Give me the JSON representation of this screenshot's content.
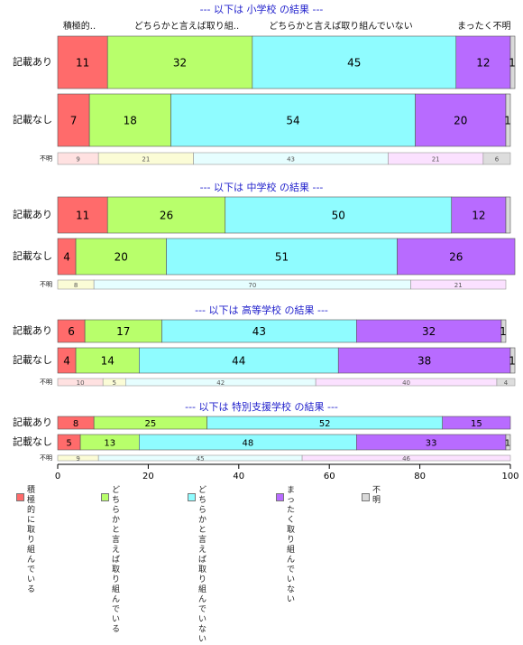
{
  "chart_data": {
    "type": "bar",
    "orientation": "horizontal",
    "stacked": true,
    "xlim": [
      0,
      100
    ],
    "x_ticks": [
      "0",
      "20",
      "40",
      "60",
      "80",
      "100"
    ],
    "series": [
      {
        "name": "積極的に\n取り組んでいる",
        "color": "#ff6b6b"
      },
      {
        "name": "どちらかと言えば\n取り組んでいる",
        "color": "#b8ff6b"
      },
      {
        "name": "どちらかと言えば\n取り組んでいない",
        "color": "#8ffcff"
      },
      {
        "name": "まったく\n取り組んでいない",
        "color": "#b86bff"
      },
      {
        "name": "不明",
        "color": "#d9d9d9"
      }
    ],
    "top_headers": [
      "積極的..",
      "どちらかと言えば取り組..",
      "どちらかと言えば取り組んでいない",
      "まったく不明"
    ],
    "panels": [
      {
        "title": "--- 以下は 小学校 の結果 ---",
        "rows": [
          {
            "label": "記載あり",
            "values": [
              11,
              32,
              45,
              12,
              1
            ],
            "labels": [
              "11",
              "32",
              "45",
              "12",
              "1"
            ]
          },
          {
            "label": "記載なし",
            "values": [
              7,
              18,
              54,
              20,
              1
            ],
            "labels": [
              "7",
              "18",
              "54",
              "20",
              "1"
            ]
          },
          {
            "label": "不明",
            "values": [
              9,
              21,
              43,
              21,
              6
            ],
            "labels": [
              "9",
              "21",
              "43",
              "21",
              "6"
            ],
            "small": true
          }
        ]
      },
      {
        "title": "--- 以下は 中学校 の結果 ---",
        "rows": [
          {
            "label": "記載あり",
            "values": [
              11,
              26,
              50,
              12,
              1
            ],
            "labels": [
              "11",
              "26",
              "50",
              "12",
              ""
            ]
          },
          {
            "label": "記載なし",
            "values": [
              4,
              20,
              51,
              26,
              0
            ],
            "labels": [
              "4",
              "20",
              "51",
              "26",
              ""
            ]
          },
          {
            "label": "不明",
            "values": [
              0,
              8,
              70,
              21,
              0
            ],
            "labels": [
              "",
              "8",
              "70",
              "21",
              ""
            ],
            "small": true
          }
        ]
      },
      {
        "title": "--- 以下は 高等学校 の結果 ---",
        "rows": [
          {
            "label": "記載あり",
            "values": [
              6,
              17,
              43,
              32,
              1
            ],
            "labels": [
              "6",
              "17",
              "43",
              "32",
              "1"
            ]
          },
          {
            "label": "記載なし",
            "values": [
              4,
              14,
              44,
              38,
              1
            ],
            "labels": [
              "4",
              "14",
              "44",
              "38",
              "1"
            ]
          },
          {
            "label": "不明",
            "values": [
              10,
              5,
              42,
              40,
              4
            ],
            "labels": [
              "10",
              "5",
              "42",
              "40",
              "4"
            ],
            "small": true
          }
        ]
      },
      {
        "title": "--- 以下は 特別支援学校 の結果 ---",
        "rows": [
          {
            "label": "記載あり",
            "values": [
              8,
              25,
              52,
              15,
              0
            ],
            "labels": [
              "8",
              "25",
              "52",
              "15",
              ""
            ]
          },
          {
            "label": "記載なし",
            "values": [
              5,
              13,
              48,
              33,
              1
            ],
            "labels": [
              "5",
              "13",
              "48",
              "33",
              "1"
            ]
          },
          {
            "label": "不明",
            "values": [
              0,
              9,
              45,
              46,
              0
            ],
            "labels": [
              "",
              "9",
              "45",
              "46",
              ""
            ],
            "small": true
          }
        ]
      }
    ]
  }
}
